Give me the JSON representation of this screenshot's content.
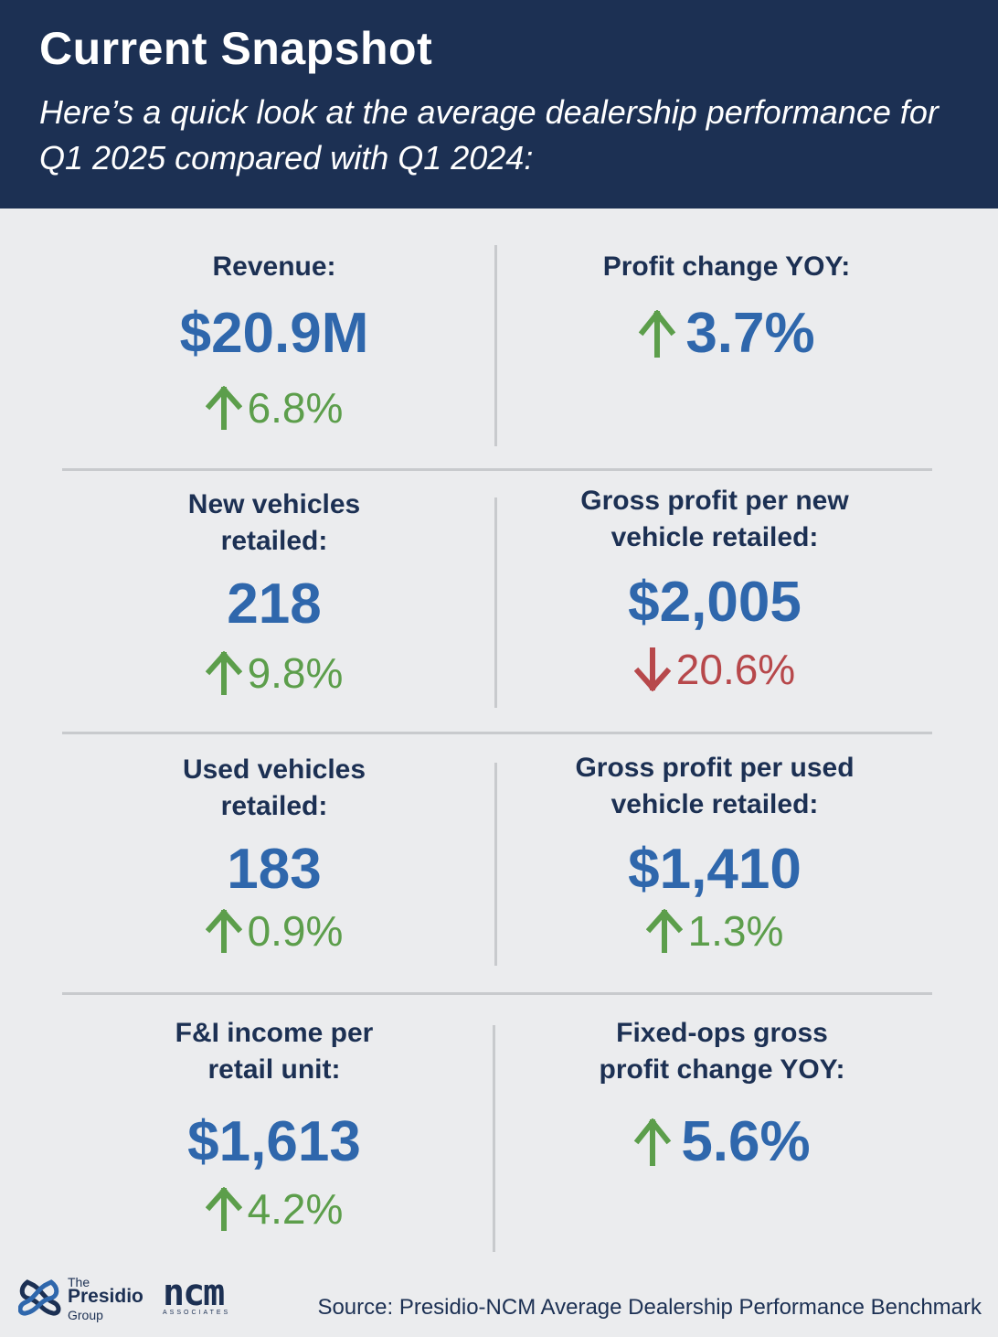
{
  "header": {
    "title": "Current Snapshot",
    "subtitle": "Here’s a quick look at the average dealership performance for Q1 2025 compared with Q1 2024:"
  },
  "metrics": {
    "revenue": {
      "label": "Revenue:",
      "value": "$20.9M",
      "change": "6.8%",
      "direction": "up"
    },
    "profit_change": {
      "label": "Profit change YOY:",
      "change": "3.7%",
      "direction": "up"
    },
    "new_vehicles": {
      "label_line1": "New vehicles",
      "label_line2": "retailed:",
      "value": "218",
      "change": "9.8%",
      "direction": "up"
    },
    "gp_new": {
      "label_line1": "Gross profit per new",
      "label_line2": "vehicle retailed:",
      "value": "$2,005",
      "change": "20.6%",
      "direction": "down"
    },
    "used_vehicles": {
      "label_line1": "Used vehicles",
      "label_line2": "retailed:",
      "value": "183",
      "change": "0.9%",
      "direction": "up"
    },
    "gp_used": {
      "label_line1": "Gross profit per used",
      "label_line2": "vehicle retailed:",
      "value": "$1,410",
      "change": "1.3%",
      "direction": "up"
    },
    "fi_income": {
      "label_line1": "F&I income per",
      "label_line2": "retail unit:",
      "value": "$1,613",
      "change": "4.2%",
      "direction": "up"
    },
    "fixed_ops": {
      "label_line1": "Fixed-ops gross",
      "label_line2": "profit change YOY:",
      "change": "5.6%",
      "direction": "up"
    }
  },
  "footer": {
    "source": "Source: Presidio-NCM Average Dealership Performance Benchmark",
    "logo_presidio": {
      "the": "The",
      "name": "Presidio",
      "group": "Group"
    },
    "logo_ncm": {
      "name": "ncm",
      "sub": "ASSOCIATES"
    }
  },
  "colors": {
    "header_bg": "#1c3053",
    "value_blue": "#2f67ac",
    "up_green": "#5c9e4b",
    "down_red": "#b7484b"
  }
}
